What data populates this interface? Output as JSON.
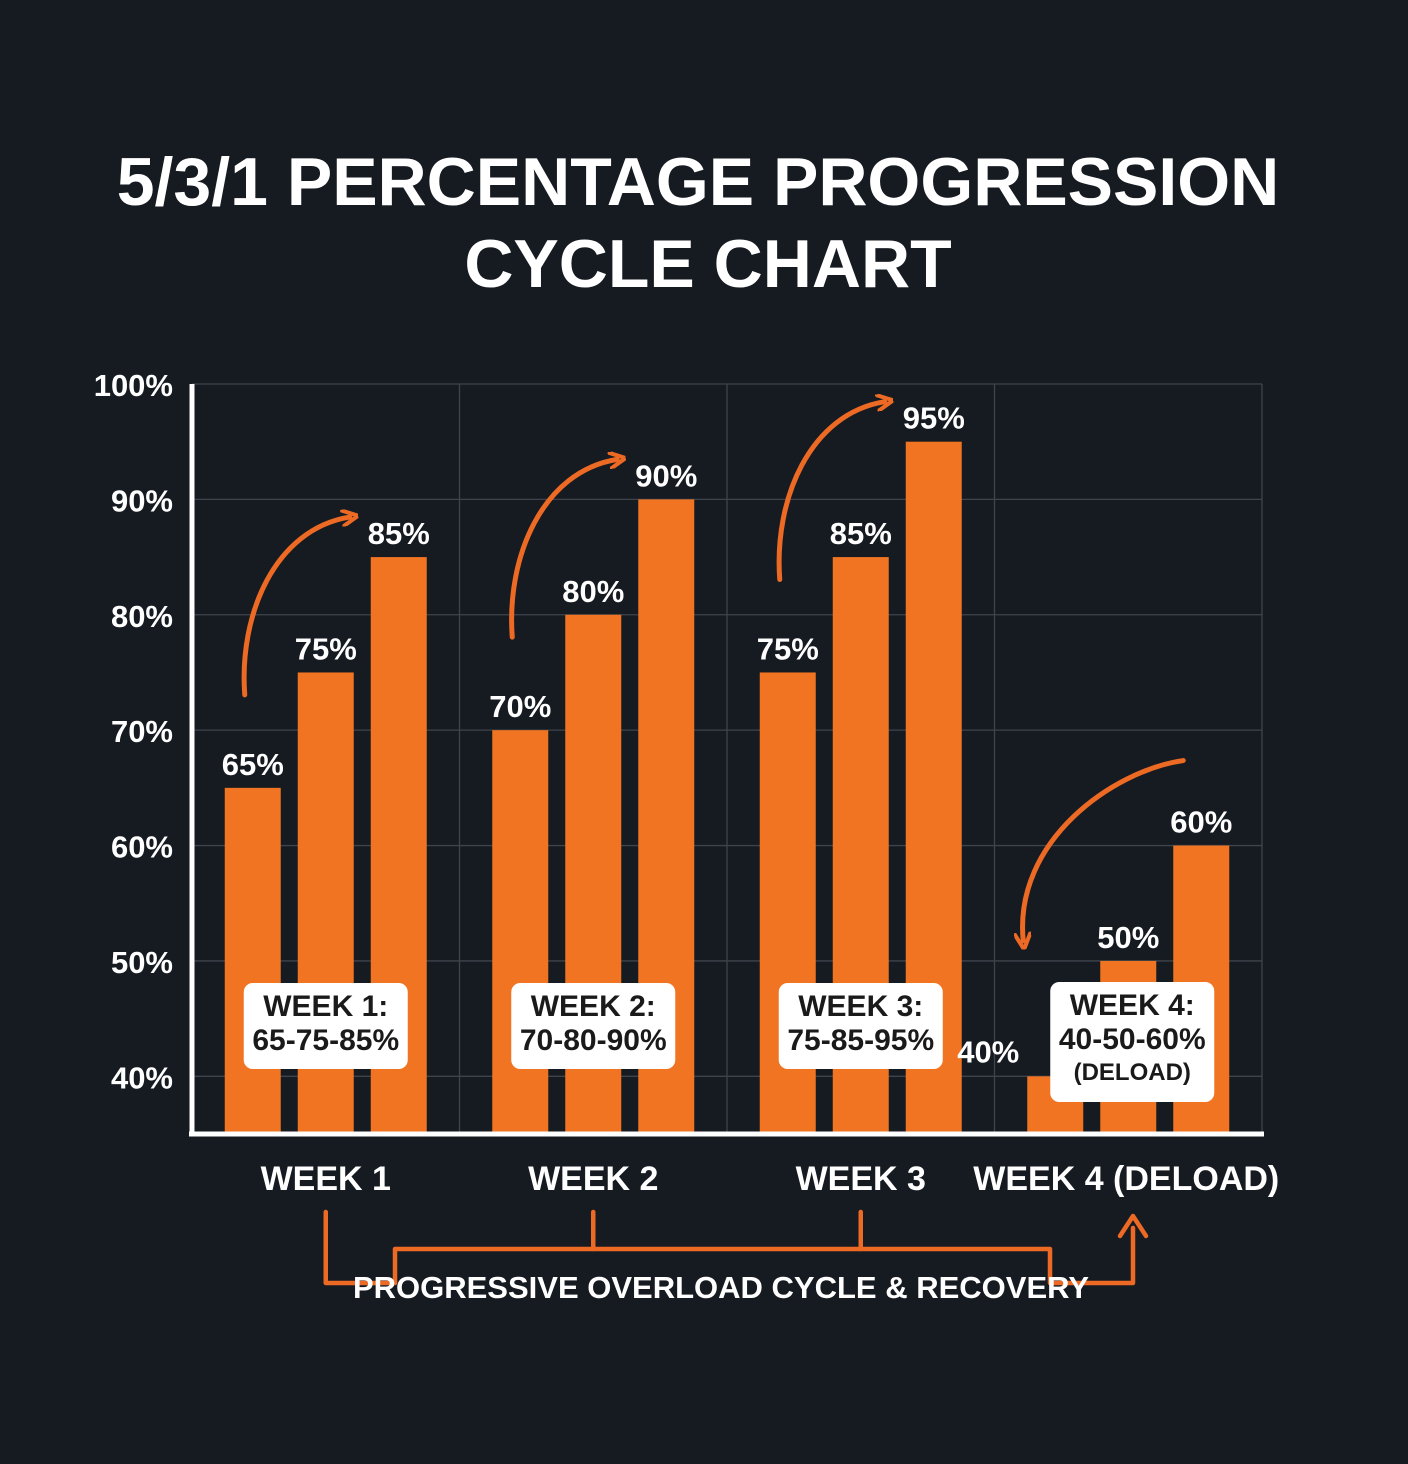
{
  "chart_data": {
    "type": "bar",
    "title_lines": [
      "5/3/1 PERCENTAGE PROGRESSION",
      "CYCLE CHART"
    ],
    "ylim": [
      35,
      100
    ],
    "yticks": [
      40,
      50,
      60,
      70,
      80,
      90,
      100
    ],
    "ytick_labels": [
      "40%",
      "50%",
      "60%",
      "70%",
      "80%",
      "90%",
      "100%"
    ],
    "grid": true,
    "categories": [
      "WEEK 1",
      "WEEK 2",
      "WEEK 3",
      "WEEK 4 (DELOAD)"
    ],
    "groups": [
      {
        "name": "WEEK 1",
        "values": [
          65,
          75,
          85
        ],
        "value_labels": [
          "65%",
          "75%",
          "85%"
        ],
        "box_lines": [
          "WEEK 1:",
          "65-75-85%"
        ],
        "trend": "up"
      },
      {
        "name": "WEEK 2",
        "values": [
          70,
          80,
          90
        ],
        "value_labels": [
          "70%",
          "80%",
          "90%"
        ],
        "box_lines": [
          "WEEK 2:",
          "70-80-90%"
        ],
        "trend": "up"
      },
      {
        "name": "WEEK 3",
        "values": [
          75,
          85,
          95
        ],
        "value_labels": [
          "75%",
          "85%",
          "95%"
        ],
        "box_lines": [
          "WEEK 3:",
          "75-85-95%"
        ],
        "trend": "up"
      },
      {
        "name": "WEEK 4 (DELOAD)",
        "values": [
          40,
          50,
          60
        ],
        "value_labels": [
          "40%",
          "50%",
          "60%"
        ],
        "box_lines": [
          "WEEK 4:",
          "40-50-60%",
          "(DELOAD)"
        ],
        "trend": "down"
      }
    ],
    "footer_label": "PROGRESSIVE OVERLOAD CYCLE & RECOVERY"
  },
  "colors": {
    "background": "#161a21",
    "bar": "#f07421",
    "arrow": "#ec6a24",
    "text": "#ffffff",
    "grid": "#3f444c",
    "box_bg": "#ffffff",
    "box_text": "#1a1a1a"
  }
}
